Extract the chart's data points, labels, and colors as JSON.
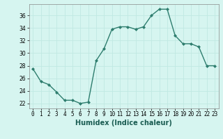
{
  "x": [
    0,
    1,
    2,
    3,
    4,
    5,
    6,
    7,
    8,
    9,
    10,
    11,
    12,
    13,
    14,
    15,
    16,
    17,
    18,
    19,
    20,
    21,
    22,
    23
  ],
  "y": [
    27.5,
    25.5,
    25.0,
    23.8,
    22.5,
    22.5,
    22.0,
    22.2,
    28.8,
    30.7,
    33.8,
    34.2,
    34.2,
    33.8,
    34.2,
    36.0,
    37.0,
    37.0,
    32.8,
    31.5,
    31.5,
    31.0,
    28.0,
    28.0
  ],
  "xlabel": "Humidex (Indice chaleur)",
  "xlim": [
    -0.5,
    23.5
  ],
  "ylim": [
    21.2,
    37.8
  ],
  "yticks": [
    22,
    24,
    26,
    28,
    30,
    32,
    34,
    36
  ],
  "xticks": [
    0,
    1,
    2,
    3,
    4,
    5,
    6,
    7,
    8,
    9,
    10,
    11,
    12,
    13,
    14,
    15,
    16,
    17,
    18,
    19,
    20,
    21,
    22,
    23
  ],
  "line_color": "#2e7d6e",
  "marker_color": "#2e7d6e",
  "bg_color": "#d6f5f0",
  "grid_color": "#c0e8e2",
  "xlabel_fontsize": 7,
  "tick_fontsize": 5.5
}
